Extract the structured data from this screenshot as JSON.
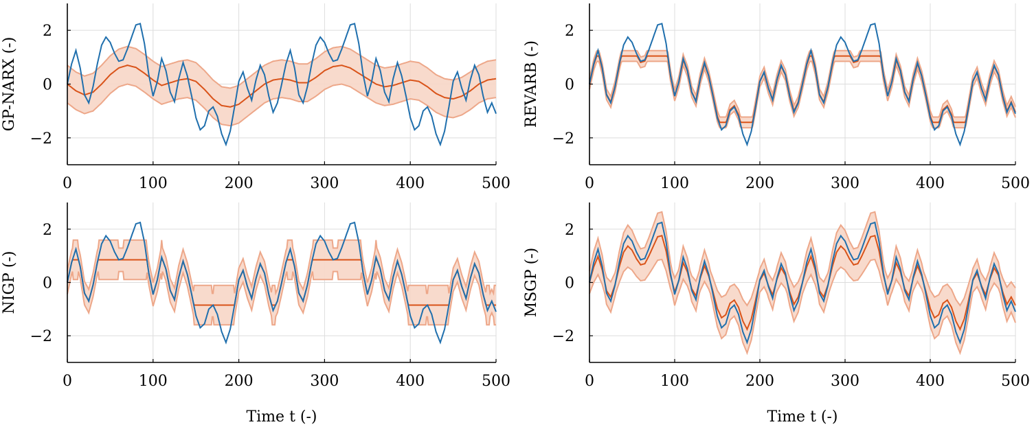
{
  "colors": {
    "true_signal": "#1f6fad",
    "prediction": "#d95319",
    "band_fill": "#f7d6c6",
    "band_edge": "#eda789",
    "grid": "#dcdcdc"
  },
  "chart_data": [
    {
      "type": "line",
      "ylabel": "GP-NARX (-)",
      "xlabel": "",
      "xlim": [
        0,
        500
      ],
      "ylim": [
        -3,
        3
      ],
      "xticks": [
        "0",
        "100",
        "200",
        "300",
        "400",
        "500"
      ],
      "yticks": [
        "2",
        "0",
        "−2"
      ],
      "grid": true,
      "series": [
        {
          "role": "true",
          "x": [
            0,
            5,
            10,
            15,
            20,
            25,
            30,
            35,
            40,
            45,
            50,
            55,
            60,
            65,
            70,
            75,
            80,
            85,
            90,
            95,
            100,
            105,
            110,
            115,
            120,
            125,
            130,
            135,
            140,
            145,
            150,
            155,
            160,
            165,
            170,
            175,
            180,
            185,
            190,
            195,
            200,
            205,
            210,
            215,
            220,
            225,
            230,
            235,
            240,
            245,
            250,
            255,
            260,
            265,
            270,
            275,
            280,
            285,
            290,
            295,
            300,
            305,
            310,
            315,
            320,
            325,
            330,
            335,
            340,
            345,
            350,
            355,
            360,
            365,
            370,
            375,
            380,
            385,
            390,
            395,
            400,
            405,
            410,
            415,
            420,
            425,
            430,
            435,
            440,
            445,
            450,
            455,
            460,
            465,
            470,
            475,
            480,
            485,
            490,
            495,
            500
          ],
          "y": [
            0,
            0.75,
            1.25,
            0.6,
            -0.4,
            -0.7,
            -0.1,
            0.75,
            1.45,
            1.75,
            1.55,
            1.15,
            0.85,
            0.9,
            1.3,
            1.75,
            2.2,
            2.25,
            1.5,
            0.35,
            -0.45,
            0.1,
            0.95,
            0.5,
            -0.3,
            -0.65,
            0.2,
            0.8,
            0.3,
            -0.45,
            -1.25,
            -1.7,
            -1.55,
            -1.0,
            -0.85,
            -1.2,
            -1.85,
            -2.25,
            -1.75,
            -0.85,
            0.1,
            0.45,
            -0.15,
            -0.6,
            0.15,
            0.7,
            0.35,
            -0.45,
            -1.05,
            -0.7,
            0,
            0.75,
            1.25,
            0.6,
            -0.4,
            -0.7,
            -0.1,
            0.75,
            1.45,
            1.75,
            1.55,
            1.15,
            0.85,
            0.9,
            1.3,
            1.75,
            2.2,
            2.25,
            1.5,
            0.35,
            -0.45,
            0.1,
            0.95,
            0.5,
            -0.3,
            -0.65,
            0.2,
            0.8,
            0.3,
            -0.45,
            -1.25,
            -1.7,
            -1.55,
            -1.0,
            -0.85,
            -1.2,
            -1.85,
            -2.25,
            -1.75,
            -0.85,
            0.1,
            0.45,
            -0.15,
            -0.6,
            0.15,
            0.7,
            0.35,
            -0.45,
            -1.05,
            -0.7,
            -1.1
          ]
        },
        {
          "role": "mean",
          "x": [
            0,
            10,
            20,
            30,
            40,
            50,
            60,
            70,
            80,
            90,
            100,
            110,
            120,
            130,
            140,
            150,
            160,
            170,
            180,
            190,
            200,
            210,
            220,
            230,
            240,
            250,
            260,
            270,
            280,
            290,
            300,
            310,
            320,
            330,
            340,
            350,
            360,
            370,
            380,
            390,
            400,
            410,
            420,
            430,
            440,
            450,
            460,
            470,
            480,
            490,
            500
          ],
          "y": [
            0,
            -0.25,
            -0.4,
            -0.3,
            0,
            0.35,
            0.6,
            0.7,
            0.62,
            0.4,
            0.15,
            -0.05,
            0.05,
            0.15,
            0.2,
            0.1,
            -0.2,
            -0.55,
            -0.8,
            -0.85,
            -0.75,
            -0.5,
            -0.25,
            0,
            0.15,
            0.2,
            0.15,
            0.05,
            0.05,
            0.25,
            0.5,
            0.65,
            0.7,
            0.6,
            0.4,
            0.2,
            0,
            -0.1,
            -0.05,
            0.05,
            0.15,
            0.1,
            -0.1,
            -0.35,
            -0.5,
            -0.55,
            -0.45,
            -0.25,
            0,
            0.15,
            0.2
          ]
        },
        {
          "role": "band",
          "halfwidth": 0.7
        }
      ]
    },
    {
      "type": "line",
      "ylabel": "REVARB (-)",
      "xlabel": "",
      "xlim": [
        0,
        500
      ],
      "ylim": [
        -3,
        3
      ],
      "xticks": [
        "0",
        "100",
        "200",
        "300",
        "400",
        "500"
      ],
      "yticks": [
        "2",
        "0",
        "−2"
      ],
      "grid": true,
      "series": [
        {
          "role": "true",
          "ref": 0
        },
        {
          "role": "mean",
          "transform": "clip",
          "clip": [
            -1.5,
            1.1
          ],
          "scale": 0.95
        },
        {
          "role": "band",
          "halfwidth": 0.2
        }
      ]
    },
    {
      "type": "line",
      "ylabel": "NIGP (-)",
      "xlabel": "",
      "xlim": [
        0,
        500
      ],
      "ylim": [
        -3,
        3
      ],
      "xticks": [
        "0",
        "100",
        "200",
        "300",
        "400",
        "500"
      ],
      "yticks": [
        "2",
        "0",
        "−2"
      ],
      "grid": true,
      "series": [
        {
          "role": "true",
          "ref": 0
        },
        {
          "role": "mean",
          "transform": "nigp"
        },
        {
          "role": "band",
          "halfwidth": 0.55
        }
      ]
    },
    {
      "type": "line",
      "ylabel": "MSGP (-)",
      "xlabel": "Time t (-)",
      "xlim": [
        0,
        500
      ],
      "ylim": [
        -3,
        3
      ],
      "xticks": [
        "0",
        "100",
        "200",
        "300",
        "400",
        "500"
      ],
      "yticks": [
        "2",
        "0",
        "−2"
      ],
      "grid": true,
      "series": [
        {
          "role": "true",
          "ref": 0
        },
        {
          "role": "mean",
          "transform": "msgp"
        },
        {
          "role": "band",
          "halfwidth": 0.6
        }
      ]
    }
  ],
  "bottom_labels": {
    "left": "Time t (-)",
    "right": "Time t (-)"
  }
}
